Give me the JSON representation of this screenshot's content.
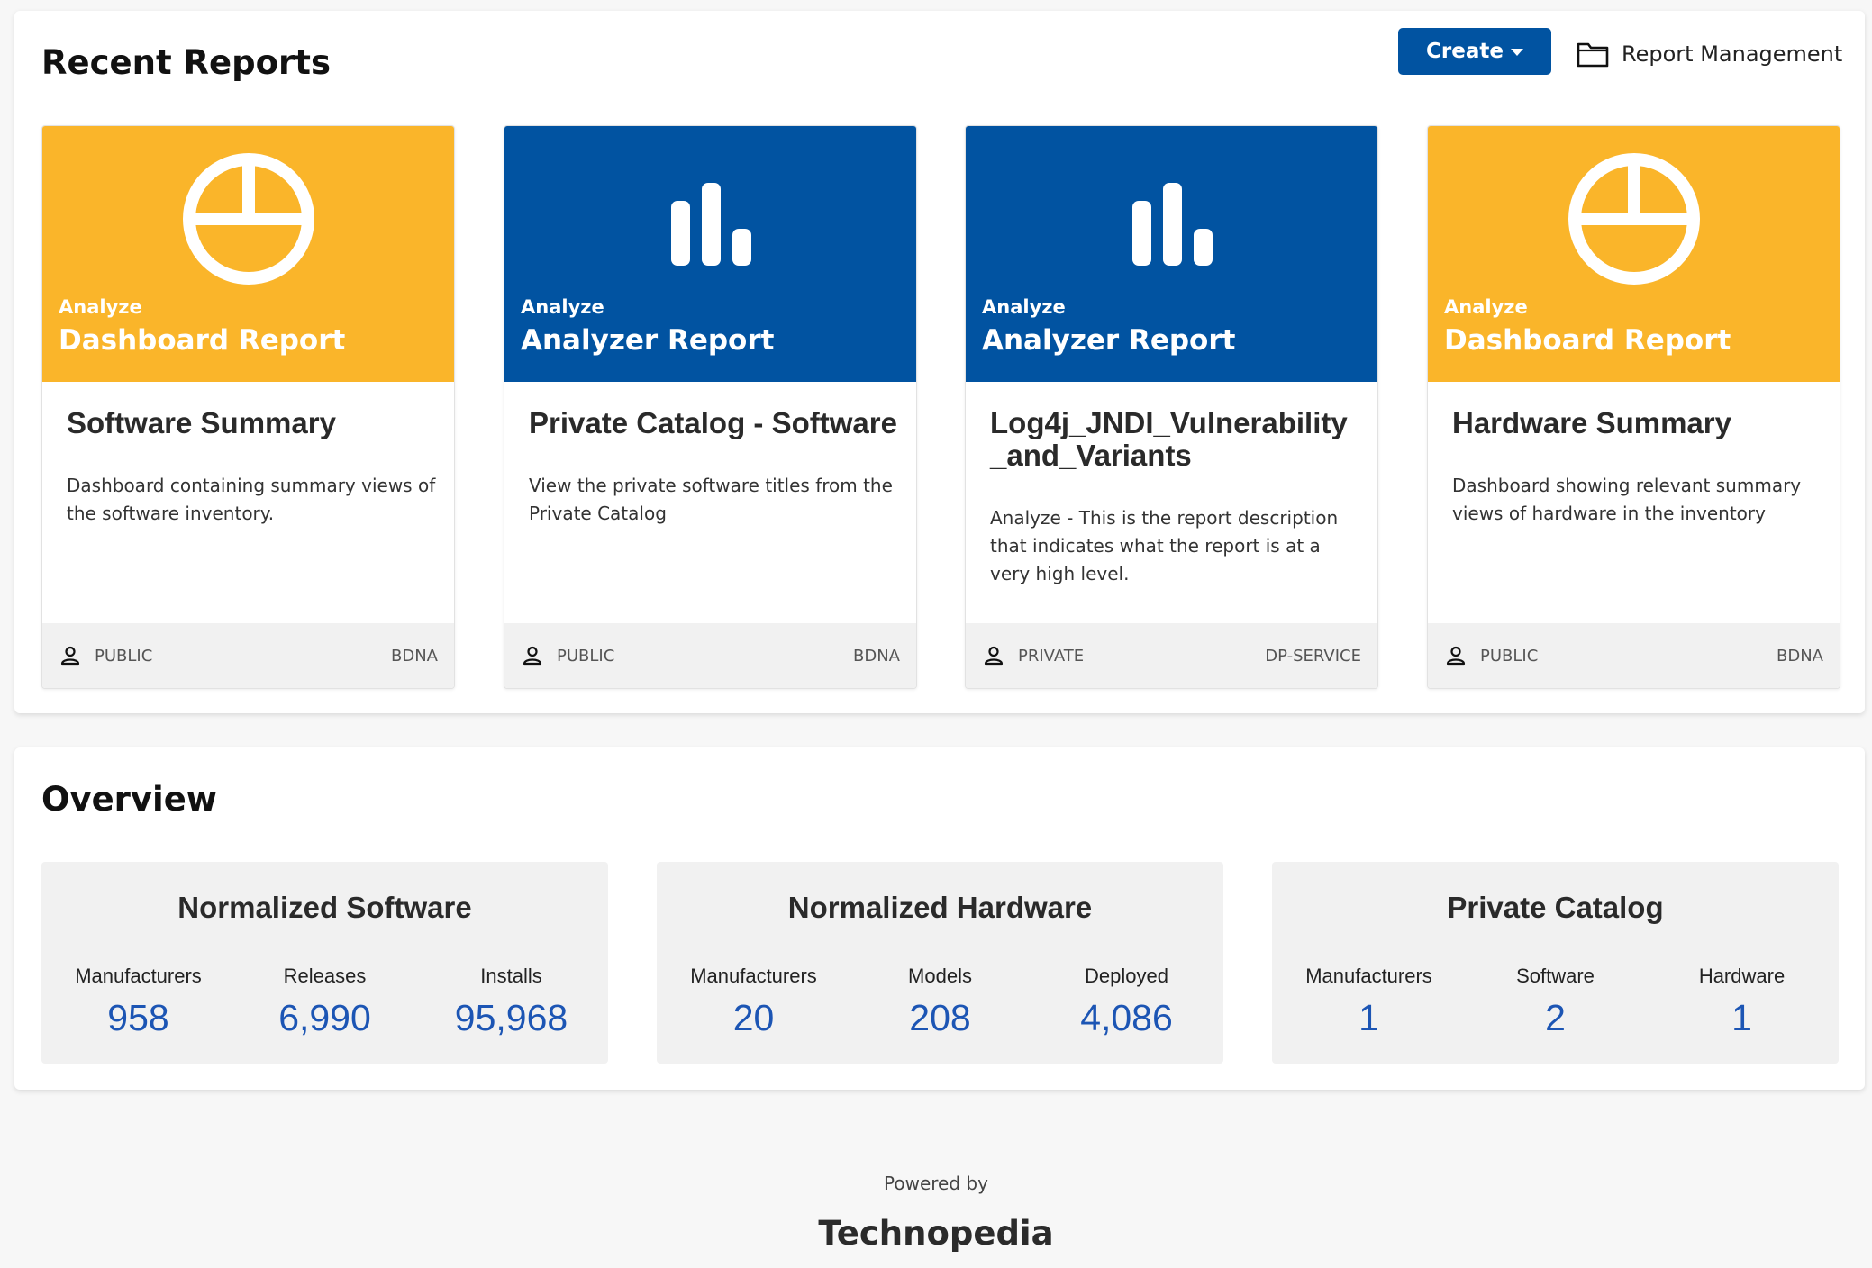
{
  "recent_reports": {
    "title": "Recent Reports",
    "create_label": "Create",
    "report_management_label": "Report Management",
    "cards": [
      {
        "kicker": "Analyze",
        "type": "Dashboard Report",
        "icon": "dashboard-icon",
        "color": "#fab52a",
        "title": "Software Summary",
        "description": "Dashboard containing summary views of the software inventory.",
        "visibility": "PUBLIC",
        "owner": "BDNA"
      },
      {
        "kicker": "Analyze",
        "type": "Analyzer Report",
        "icon": "bar-chart-icon",
        "color": "#0153a1",
        "title": "Private Catalog - Software",
        "description": "View the private software titles from the Private Catalog",
        "visibility": "PUBLIC",
        "owner": "BDNA"
      },
      {
        "kicker": "Analyze",
        "type": "Analyzer Report",
        "icon": "bar-chart-icon",
        "color": "#0153a1",
        "title": "Log4j_JNDI_Vulnerability_and_Variants",
        "description": "Analyze - This is the report description that indicates what the report is at a very high level.",
        "visibility": "PRIVATE",
        "owner": "DP-SERVICE"
      },
      {
        "kicker": "Analyze",
        "type": "Dashboard Report",
        "icon": "dashboard-icon",
        "color": "#fab52a",
        "title": "Hardware Summary",
        "description": "Dashboard showing relevant summary views of hardware in the inventory",
        "visibility": "PUBLIC",
        "owner": "BDNA"
      }
    ]
  },
  "overview": {
    "title": "Overview",
    "boxes": [
      {
        "title": "Normalized Software",
        "metrics": [
          {
            "label": "Manufacturers",
            "value": "958"
          },
          {
            "label": "Releases",
            "value": "6,990"
          },
          {
            "label": "Installs",
            "value": "95,968"
          }
        ]
      },
      {
        "title": "Normalized Hardware",
        "metrics": [
          {
            "label": "Manufacturers",
            "value": "20"
          },
          {
            "label": "Models",
            "value": "208"
          },
          {
            "label": "Deployed",
            "value": "4,086"
          }
        ]
      },
      {
        "title": "Private Catalog",
        "metrics": [
          {
            "label": "Manufacturers",
            "value": "1"
          },
          {
            "label": "Software",
            "value": "2"
          },
          {
            "label": "Hardware",
            "value": "1"
          }
        ]
      }
    ]
  },
  "footer": {
    "powered_by": "Powered by",
    "brand": "Technopedia"
  },
  "colors": {
    "primary_blue": "#0153a1",
    "accent_yellow": "#fab52a",
    "metric_blue": "#1c55b4"
  }
}
